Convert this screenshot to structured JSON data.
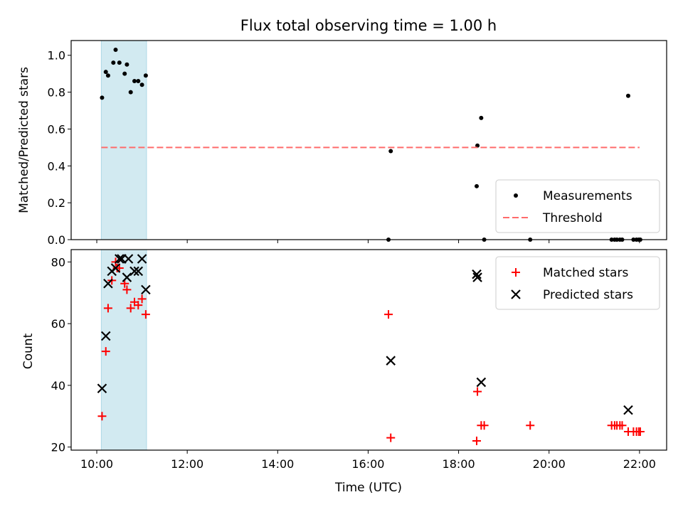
{
  "chart_data": [
    {
      "type": "scatter",
      "title": "Flux total observing time = 1.00 h",
      "ylabel": "Matched/Predicted stars",
      "xlabel": "",
      "xlim": [
        "09:26",
        "22:36"
      ],
      "ylim": [
        0.0,
        1.08
      ],
      "yticks": [
        0.0,
        0.2,
        0.4,
        0.6,
        0.8,
        1.0
      ],
      "xticks": [
        "10:00",
        "12:00",
        "14:00",
        "16:00",
        "18:00",
        "20:00",
        "22:00"
      ],
      "shaded_span": [
        "10:06",
        "11:06"
      ],
      "shade_color": "#add8e6",
      "legend_position": "lower right",
      "series": [
        {
          "name": "Measurements",
          "marker": "dot",
          "color": "#000000",
          "points": [
            [
              "10:07",
              0.77
            ],
            [
              "10:12",
              0.91
            ],
            [
              "10:15",
              0.89
            ],
            [
              "10:22",
              0.96
            ],
            [
              "10:25",
              1.03
            ],
            [
              "10:30",
              0.96
            ],
            [
              "10:37",
              0.9
            ],
            [
              "10:40",
              0.95
            ],
            [
              "10:45",
              0.8
            ],
            [
              "10:50",
              0.86
            ],
            [
              "10:55",
              0.86
            ],
            [
              "11:00",
              0.84
            ],
            [
              "11:05",
              0.89
            ],
            [
              "16:27",
              0.0
            ],
            [
              "16:30",
              0.48
            ],
            [
              "18:24",
              0.29
            ],
            [
              "18:25",
              0.51
            ],
            [
              "18:30",
              0.66
            ],
            [
              "18:34",
              0.0
            ],
            [
              "19:35",
              0.0
            ],
            [
              "21:23",
              0.0
            ],
            [
              "21:27",
              0.0
            ],
            [
              "21:30",
              0.0
            ],
            [
              "21:34",
              0.0
            ],
            [
              "21:37",
              0.0
            ],
            [
              "21:45",
              0.78
            ],
            [
              "21:52",
              0.0
            ],
            [
              "21:56",
              0.0
            ],
            [
              "21:59",
              0.0
            ],
            [
              "22:01",
              0.0
            ]
          ]
        },
        {
          "name": "Threshold",
          "line_style": "dashed",
          "color": "#ff6b6b",
          "x": [
            "10:06",
            "22:00"
          ],
          "values": [
            0.5,
            0.5
          ]
        }
      ]
    },
    {
      "type": "scatter",
      "title": "",
      "ylabel": "Count",
      "xlabel": "Time (UTC)",
      "xlim": [
        "09:26",
        "22:36"
      ],
      "ylim": [
        19,
        84
      ],
      "yticks": [
        20,
        40,
        60,
        80
      ],
      "xticks": [
        "10:00",
        "12:00",
        "14:00",
        "16:00",
        "18:00",
        "20:00",
        "22:00"
      ],
      "shaded_span": [
        "10:06",
        "11:06"
      ],
      "shade_color": "#add8e6",
      "legend_position": "upper right",
      "series": [
        {
          "name": "Matched stars",
          "marker": "plus",
          "color": "#ff0000",
          "points": [
            [
              "10:07",
              30
            ],
            [
              "10:12",
              51
            ],
            [
              "10:15",
              65
            ],
            [
              "10:20",
              74
            ],
            [
              "10:25",
              80
            ],
            [
              "10:27",
              78
            ],
            [
              "10:30",
              78
            ],
            [
              "10:37",
              73
            ],
            [
              "10:40",
              71
            ],
            [
              "10:45",
              65
            ],
            [
              "10:50",
              67
            ],
            [
              "10:55",
              66
            ],
            [
              "11:00",
              68
            ],
            [
              "11:05",
              63
            ],
            [
              "16:27",
              63
            ],
            [
              "16:30",
              23
            ],
            [
              "18:24",
              22
            ],
            [
              "18:25",
              38
            ],
            [
              "18:30",
              27
            ],
            [
              "18:34",
              27
            ],
            [
              "19:35",
              27
            ],
            [
              "21:23",
              27
            ],
            [
              "21:27",
              27
            ],
            [
              "21:30",
              27
            ],
            [
              "21:34",
              27
            ],
            [
              "21:37",
              27
            ],
            [
              "21:45",
              25
            ],
            [
              "21:52",
              25
            ],
            [
              "21:56",
              25
            ],
            [
              "21:59",
              25
            ],
            [
              "22:01",
              25
            ]
          ]
        },
        {
          "name": "Predicted stars",
          "marker": "x",
          "color": "#000000",
          "points": [
            [
              "10:07",
              39
            ],
            [
              "10:12",
              56
            ],
            [
              "10:15",
              73
            ],
            [
              "10:20",
              77
            ],
            [
              "10:25",
              78
            ],
            [
              "10:30",
              81
            ],
            [
              "10:33",
              81
            ],
            [
              "10:40",
              75
            ],
            [
              "10:42",
              81
            ],
            [
              "10:50",
              77
            ],
            [
              "10:55",
              77
            ],
            [
              "11:00",
              81
            ],
            [
              "11:05",
              71
            ],
            [
              "16:30",
              48
            ],
            [
              "18:24",
              76
            ],
            [
              "18:25",
              75
            ],
            [
              "18:30",
              41
            ],
            [
              "21:45",
              32
            ]
          ]
        }
      ]
    }
  ]
}
